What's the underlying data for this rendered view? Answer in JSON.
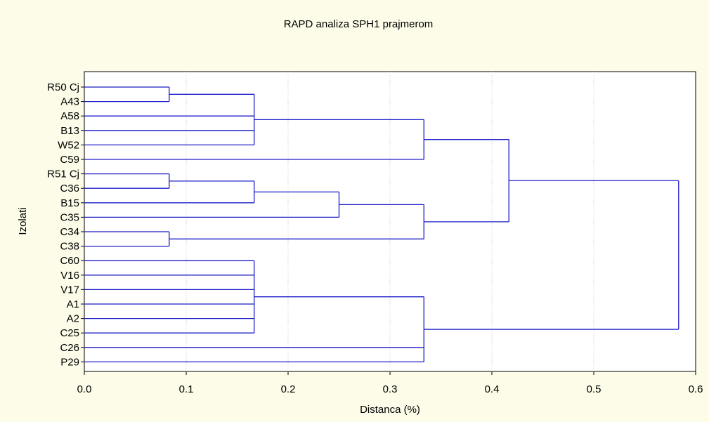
{
  "chart_data": {
    "type": "dendrogram",
    "title": "RAPD analiza SPH1 prajmerom",
    "xlabel": "Distanca  (%)",
    "ylabel": "Izolati",
    "xlim": [
      0.0,
      0.6
    ],
    "xticks": [
      "0.0",
      "0.1",
      "0.2",
      "0.3",
      "0.4",
      "0.5",
      "0.6"
    ],
    "grid": true,
    "leaves": [
      "R50 Cj",
      "A43",
      "A58",
      "B13",
      "W52",
      "C59",
      "R51 Cj",
      "C36",
      "B15",
      "C35",
      "C34",
      "C38",
      "C60",
      "V16",
      "V17",
      "A1",
      "A2",
      "C25",
      "C26",
      "P29"
    ],
    "merges": [
      {
        "id": "m1",
        "children": [
          "R50 Cj",
          "A43"
        ],
        "height": 0.0833
      },
      {
        "id": "m2",
        "children": [
          "m1",
          "A58",
          "B13",
          "W52"
        ],
        "height": 0.1667
      },
      {
        "id": "m3",
        "children": [
          "m2",
          "C59"
        ],
        "height": 0.3333
      },
      {
        "id": "m4",
        "children": [
          "R51 Cj",
          "C36"
        ],
        "height": 0.0833
      },
      {
        "id": "m5",
        "children": [
          "m4",
          "B15"
        ],
        "height": 0.1667
      },
      {
        "id": "m6",
        "children": [
          "m5",
          "C35"
        ],
        "height": 0.25
      },
      {
        "id": "m7",
        "children": [
          "C34",
          "C38"
        ],
        "height": 0.0833
      },
      {
        "id": "m8",
        "children": [
          "m6",
          "m7"
        ],
        "height": 0.3333
      },
      {
        "id": "m9",
        "children": [
          "m3",
          "m8"
        ],
        "height": 0.4167
      },
      {
        "id": "m10",
        "children": [
          "C60",
          "V16",
          "V17",
          "A1",
          "A2",
          "C25"
        ],
        "height": 0.1667
      },
      {
        "id": "m11",
        "children": [
          "m10",
          "C26",
          "P29"
        ],
        "height": 0.3333
      },
      {
        "id": "m12",
        "children": [
          "m9",
          "m11"
        ],
        "height": 0.5833
      }
    ],
    "colors": {
      "link": "#1c1cc8",
      "background": "#fcfce8",
      "plot_background": "#ffffff"
    }
  }
}
